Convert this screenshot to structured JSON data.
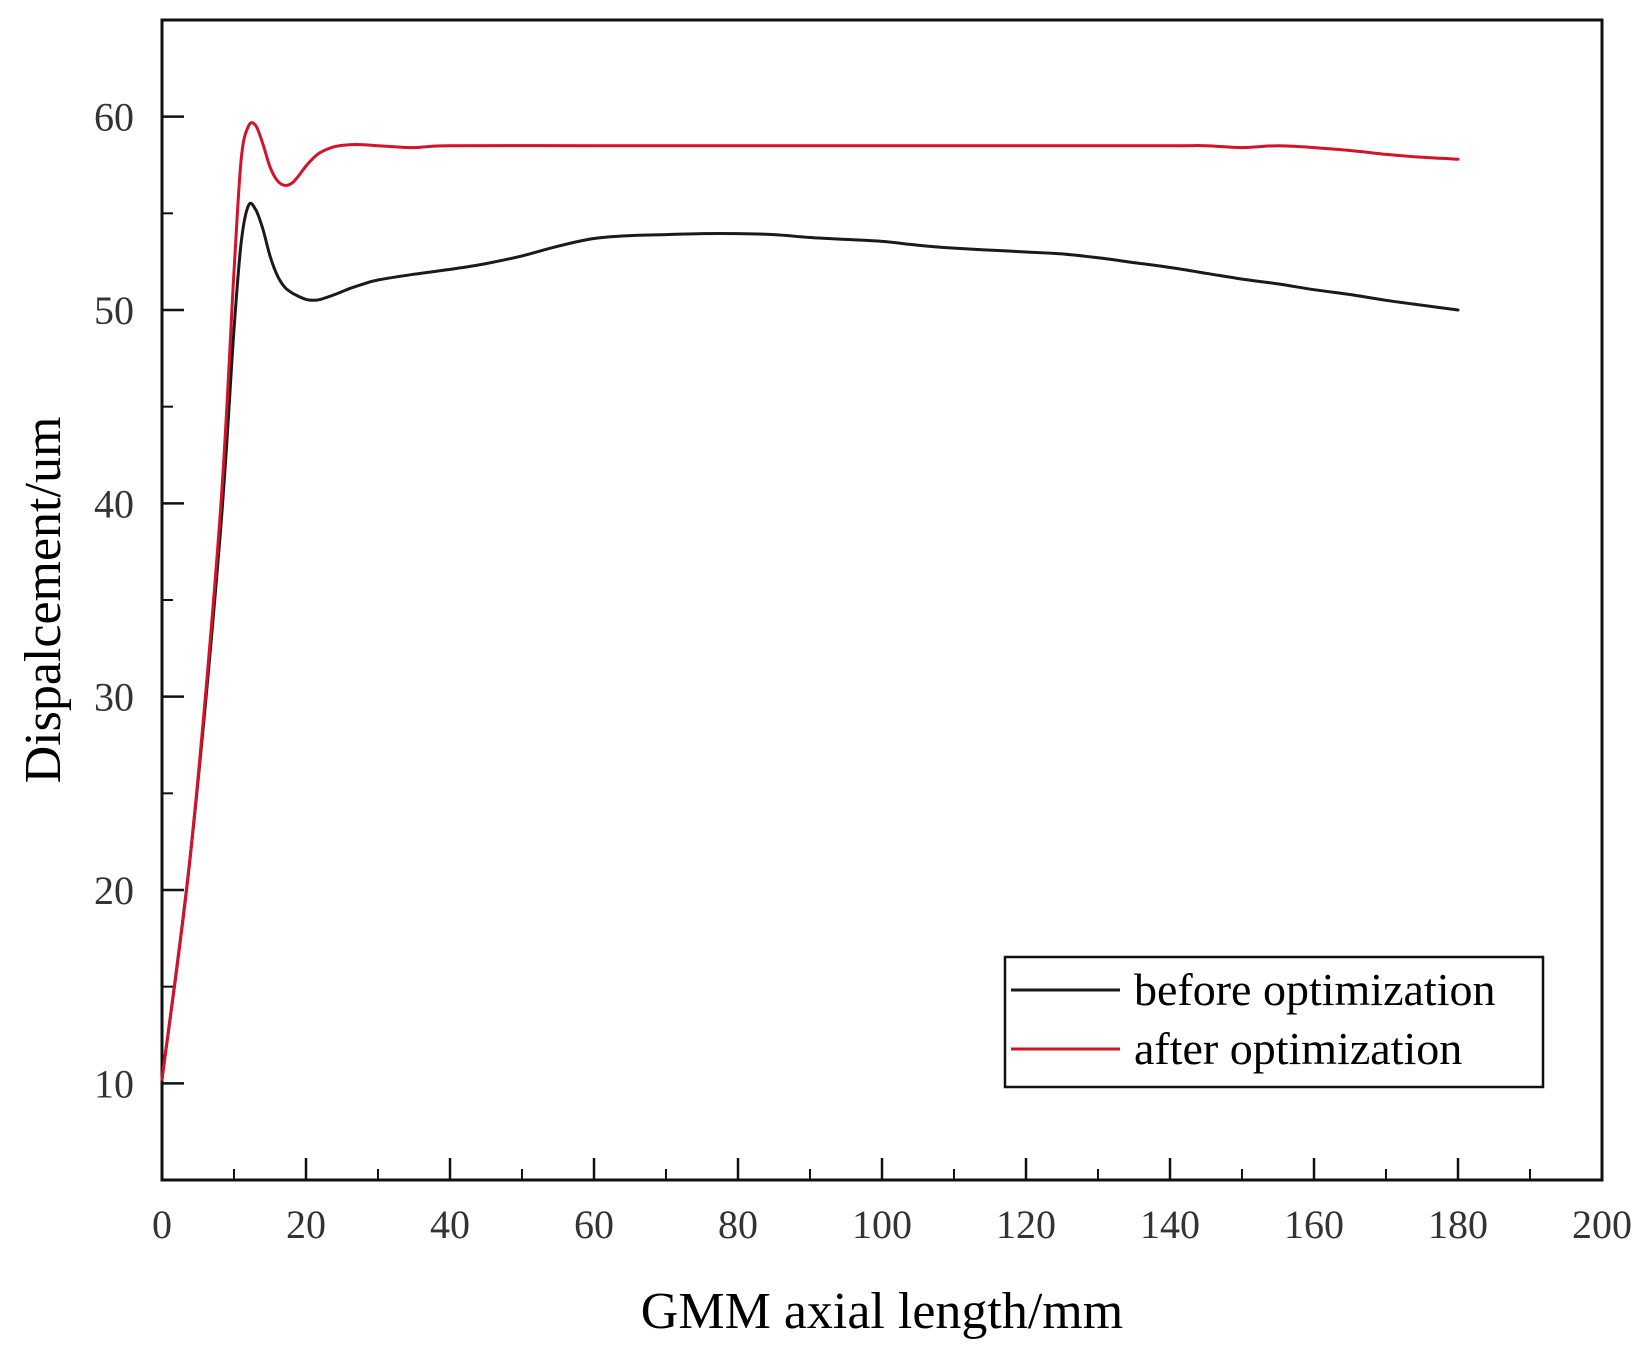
{
  "chart_data": {
    "type": "line",
    "title": "",
    "xlabel": "GMM axial length/mm",
    "ylabel": "Dispalcement/um",
    "xlim": [
      0,
      200
    ],
    "ylim": [
      5,
      65
    ],
    "xticks": [
      0,
      20,
      40,
      60,
      80,
      100,
      120,
      140,
      160,
      180,
      200
    ],
    "yticks": [
      10,
      20,
      30,
      40,
      50,
      60
    ],
    "xtick_labels": [
      "0",
      "20",
      "40",
      "60",
      "80",
      "100",
      "120",
      "140",
      "160",
      "180",
      "200"
    ],
    "ytick_labels": [
      "10",
      "20",
      "30",
      "40",
      "50",
      "60"
    ],
    "grid": false,
    "legend_position": "bottom-right",
    "series": [
      {
        "name": "before optimization",
        "color": "#1a1a1a",
        "points": [
          [
            0,
            10.2
          ],
          [
            4,
            22
          ],
          [
            8,
            38
          ],
          [
            10,
            49
          ],
          [
            11,
            53.5
          ],
          [
            12,
            55.4
          ],
          [
            13,
            55.2
          ],
          [
            14,
            54.2
          ],
          [
            15,
            52.8
          ],
          [
            16,
            51.8
          ],
          [
            17,
            51.2
          ],
          [
            18,
            50.9
          ],
          [
            19,
            50.7
          ],
          [
            20,
            50.55
          ],
          [
            21,
            50.5
          ],
          [
            22,
            50.55
          ],
          [
            24,
            50.8
          ],
          [
            26,
            51.1
          ],
          [
            28,
            51.35
          ],
          [
            30,
            51.55
          ],
          [
            35,
            51.85
          ],
          [
            40,
            52.1
          ],
          [
            45,
            52.4
          ],
          [
            50,
            52.8
          ],
          [
            55,
            53.3
          ],
          [
            60,
            53.7
          ],
          [
            65,
            53.85
          ],
          [
            70,
            53.9
          ],
          [
            75,
            53.95
          ],
          [
            80,
            53.95
          ],
          [
            85,
            53.9
          ],
          [
            90,
            53.75
          ],
          [
            95,
            53.65
          ],
          [
            100,
            53.55
          ],
          [
            105,
            53.35
          ],
          [
            110,
            53.2
          ],
          [
            115,
            53.1
          ],
          [
            120,
            53.0
          ],
          [
            125,
            52.9
          ],
          [
            130,
            52.7
          ],
          [
            135,
            52.45
          ],
          [
            140,
            52.2
          ],
          [
            145,
            51.9
          ],
          [
            150,
            51.6
          ],
          [
            155,
            51.35
          ],
          [
            160,
            51.05
          ],
          [
            165,
            50.8
          ],
          [
            170,
            50.5
          ],
          [
            175,
            50.25
          ],
          [
            180,
            50.0
          ]
        ]
      },
      {
        "name": "after optimization",
        "color": "#d4122a",
        "points": [
          [
            0,
            10.2
          ],
          [
            4,
            22
          ],
          [
            8,
            39
          ],
          [
            10,
            52
          ],
          [
            11,
            57.8
          ],
          [
            12,
            59.5
          ],
          [
            13,
            59.55
          ],
          [
            14,
            58.6
          ],
          [
            15,
            57.4
          ],
          [
            16,
            56.7
          ],
          [
            17,
            56.45
          ],
          [
            18,
            56.55
          ],
          [
            19,
            56.95
          ],
          [
            20,
            57.45
          ],
          [
            21,
            57.85
          ],
          [
            22,
            58.15
          ],
          [
            24,
            58.45
          ],
          [
            26,
            58.55
          ],
          [
            28,
            58.55
          ],
          [
            30,
            58.5
          ],
          [
            35,
            58.4
          ],
          [
            40,
            58.5
          ],
          [
            60,
            58.5
          ],
          [
            80,
            58.5
          ],
          [
            100,
            58.5
          ],
          [
            120,
            58.5
          ],
          [
            140,
            58.5
          ],
          [
            145,
            58.5
          ],
          [
            150,
            58.4
          ],
          [
            155,
            58.5
          ],
          [
            160,
            58.4
          ],
          [
            165,
            58.25
          ],
          [
            170,
            58.05
          ],
          [
            175,
            57.9
          ],
          [
            180,
            57.8
          ]
        ]
      }
    ]
  }
}
